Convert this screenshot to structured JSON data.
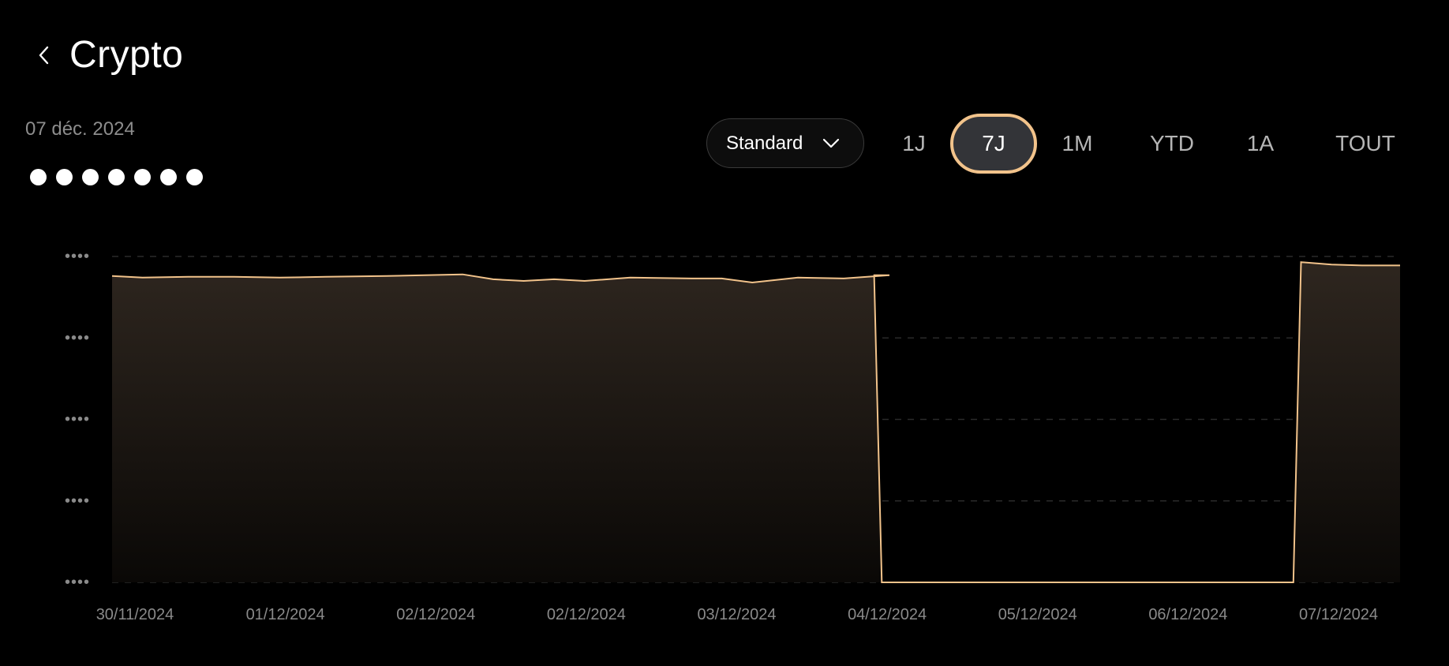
{
  "header": {
    "back_icon": "chevron-left-icon",
    "title": "Crypto"
  },
  "summary": {
    "date": "07 déc. 2024",
    "masked_value_dots": 7
  },
  "controls": {
    "mode_select": {
      "label": "Standard",
      "icon": "chevron-down-icon"
    },
    "ranges": [
      {
        "label": "1J",
        "active": false
      },
      {
        "label": "7J",
        "active": true
      },
      {
        "label": "1M",
        "active": false
      },
      {
        "label": "YTD",
        "active": false
      },
      {
        "label": "1A",
        "active": false
      },
      {
        "label": "TOUT",
        "active": false
      }
    ]
  },
  "colors": {
    "background": "#000000",
    "line": "#f2c38b",
    "active_ring": "#f2c38b",
    "active_fill": "#333438",
    "fill_top": "#2e261f"
  },
  "chart_data": {
    "type": "area",
    "x_tick_labels": [
      "30/11/2024",
      "01/12/2024",
      "02/12/2024",
      "02/12/2024",
      "03/12/2024",
      "04/12/2024",
      "05/12/2024",
      "06/12/2024",
      "07/12/2024"
    ],
    "y_tick_labels": [
      "••••",
      "••••",
      "••••",
      "••••",
      "••••"
    ],
    "ylim": [
      0,
      4
    ],
    "xlim": [
      0,
      8.45
    ],
    "grid": true,
    "series": [
      {
        "values": [
          [
            0.0,
            3.76
          ],
          [
            0.2,
            3.74
          ],
          [
            0.5,
            3.75
          ],
          [
            0.8,
            3.75
          ],
          [
            1.1,
            3.74
          ],
          [
            1.4,
            3.75
          ],
          [
            1.8,
            3.76
          ],
          [
            2.3,
            3.78
          ],
          [
            2.5,
            3.72
          ],
          [
            2.7,
            3.7
          ],
          [
            2.9,
            3.72
          ],
          [
            3.1,
            3.7
          ],
          [
            3.4,
            3.74
          ],
          [
            3.8,
            3.73
          ],
          [
            4.0,
            3.73
          ],
          [
            4.2,
            3.68
          ],
          [
            4.5,
            3.74
          ],
          [
            4.8,
            3.73
          ],
          [
            5.1,
            3.77
          ],
          [
            5.0,
            3.77
          ],
          [
            5.0,
            3.73
          ],
          [
            5.05,
            0.0
          ],
          [
            7.75,
            0.0
          ],
          [
            7.8,
            3.93
          ],
          [
            8.0,
            3.9
          ],
          [
            8.2,
            3.89
          ],
          [
            8.45,
            3.89
          ]
        ]
      }
    ]
  }
}
